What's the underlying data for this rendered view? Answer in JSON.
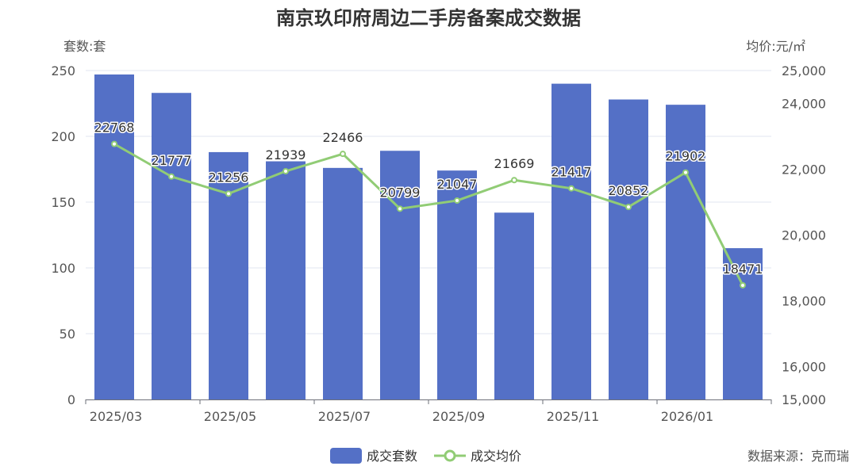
{
  "chart_data": {
    "type": "bar",
    "title": "南京玖印府周边二手房备案成交数据",
    "y_left_name": "套数:套",
    "y_right_name": "均价:元/㎡",
    "categories": [
      "2025/03",
      "2025/04",
      "2025/05",
      "2025/06",
      "2025/07",
      "2025/08",
      "2025/09",
      "2025/10",
      "2025/11",
      "2025/12",
      "2026/01",
      "2026/02"
    ],
    "x_tick_labels": [
      "2025/03",
      "2025/05",
      "2025/07",
      "2025/09",
      "2025/11",
      "2026/01"
    ],
    "y_left_ticks": [
      "0",
      "50",
      "100",
      "150",
      "200",
      "250"
    ],
    "y_right_ticks": [
      "15,000",
      "16,000",
      "18,000",
      "20,000",
      "22,000",
      "24,000",
      "25,000"
    ],
    "ylim_left": [
      0,
      250
    ],
    "ylim_right": [
      15000,
      25000
    ],
    "grid": true,
    "legend_position": "bottom-center",
    "series": [
      {
        "name": "成交套数",
        "type": "bar",
        "axis": "left",
        "color": "#5470c6",
        "values": [
          247,
          233,
          188,
          181,
          176,
          189,
          174,
          142,
          240,
          228,
          224,
          115
        ]
      },
      {
        "name": "成交均价",
        "type": "line",
        "axis": "right",
        "color": "#91cc75",
        "values": [
          22768,
          21777,
          21256,
          21939,
          22466,
          20799,
          21047,
          21669,
          21417,
          20852,
          21902,
          18471
        ],
        "labels": [
          "22768",
          "21777",
          "21256",
          "21939",
          "22466",
          "20799",
          "21047",
          "21669",
          "21417",
          "20852",
          "21902",
          "18471"
        ]
      }
    ]
  },
  "source_text": "数据来源：克而瑞"
}
